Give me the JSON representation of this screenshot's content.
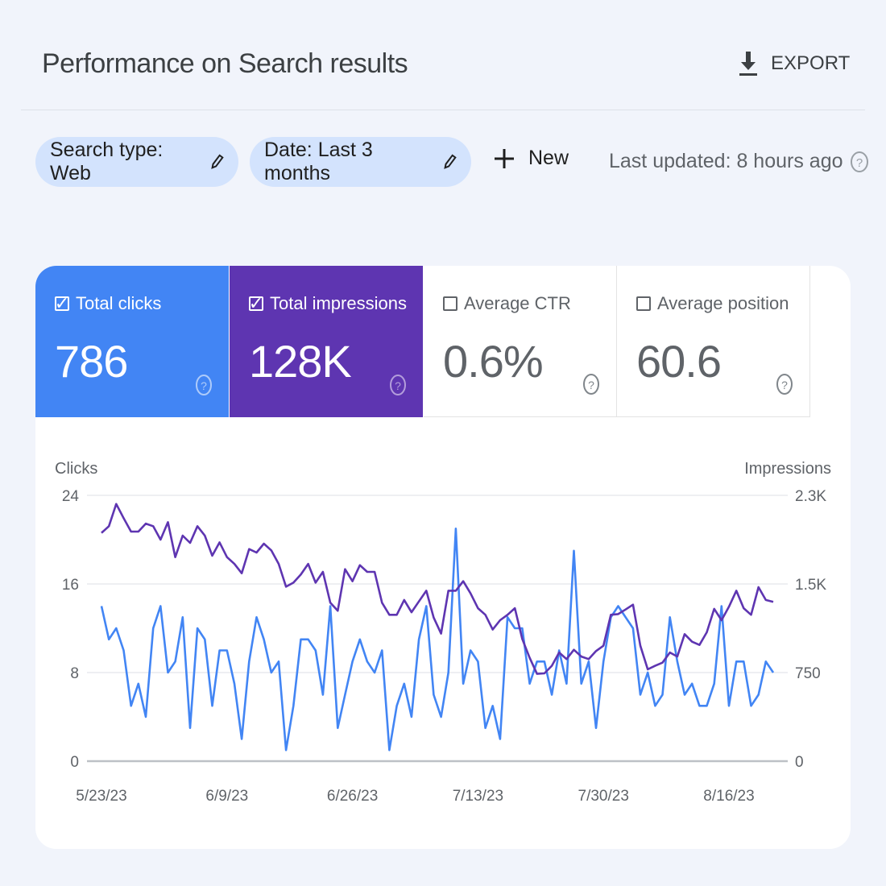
{
  "header": {
    "title": "Performance on Search results",
    "export_label": "EXPORT"
  },
  "filters": {
    "search_type": "Search type: Web",
    "date": "Date: Last 3 months",
    "new_label": "New",
    "last_updated": "Last updated: 8 hours ago"
  },
  "metrics": [
    {
      "label": "Total clicks",
      "value": "786",
      "checked": true,
      "color": "#4285f4"
    },
    {
      "label": "Total impressions",
      "value": "128K",
      "checked": true,
      "color": "#5e35b1"
    },
    {
      "label": "Average CTR",
      "value": "0.6%",
      "checked": false,
      "color": "#ffffff"
    },
    {
      "label": "Average position",
      "value": "60.6",
      "checked": false,
      "color": "#ffffff"
    }
  ],
  "chart_data": {
    "type": "line",
    "left_axis_label": "Clicks",
    "right_axis_label": "Impressions",
    "left_ylim": [
      0,
      24
    ],
    "right_ylim": [
      0,
      2250
    ],
    "left_ticks": [
      "0",
      "8",
      "16",
      "24"
    ],
    "right_ticks": [
      "0",
      "750",
      "1.5K",
      "2.3K"
    ],
    "x_tick_labels": [
      "5/23/23",
      "6/9/23",
      "6/26/23",
      "7/13/23",
      "7/30/23",
      "8/16/23"
    ],
    "grid": true,
    "dates": [
      "5/23",
      "5/24",
      "5/25",
      "5/26",
      "5/27",
      "5/28",
      "5/29",
      "5/30",
      "5/31",
      "6/1",
      "6/2",
      "6/3",
      "6/4",
      "6/5",
      "6/6",
      "6/7",
      "6/8",
      "6/9",
      "6/10",
      "6/11",
      "6/12",
      "6/13",
      "6/14",
      "6/15",
      "6/16",
      "6/17",
      "6/18",
      "6/19",
      "6/20",
      "6/21",
      "6/22",
      "6/23",
      "6/24",
      "6/25",
      "6/26",
      "6/27",
      "6/28",
      "6/29",
      "6/30",
      "7/1",
      "7/2",
      "7/3",
      "7/4",
      "7/5",
      "7/6",
      "7/7",
      "7/8",
      "7/9",
      "7/10",
      "7/11",
      "7/12",
      "7/13",
      "7/14",
      "7/15",
      "7/16",
      "7/17",
      "7/18",
      "7/19",
      "7/20",
      "7/21",
      "7/22",
      "7/23",
      "7/24",
      "7/25",
      "7/26",
      "7/27",
      "7/28",
      "7/29",
      "7/30",
      "7/31",
      "8/1",
      "8/2",
      "8/3",
      "8/4",
      "8/5",
      "8/6",
      "8/7",
      "8/8",
      "8/9",
      "8/10",
      "8/11",
      "8/12",
      "8/13",
      "8/14",
      "8/15",
      "8/16",
      "8/17",
      "8/18",
      "8/19",
      "8/20",
      "8/21",
      "8/22"
    ],
    "series": [
      {
        "name": "Clicks",
        "axis": "left",
        "color": "#4285f4",
        "values": [
          14,
          11,
          12,
          10,
          5,
          7,
          4,
          12,
          14,
          8,
          9,
          13,
          3,
          12,
          11,
          5,
          10,
          10,
          7,
          2,
          9,
          13,
          11,
          8,
          9,
          1,
          5,
          11,
          11,
          10,
          6,
          14,
          3,
          6,
          9,
          11,
          9,
          8,
          10,
          1,
          5,
          7,
          4,
          11,
          14,
          6,
          4,
          8,
          21,
          7,
          10,
          9,
          3,
          5,
          2,
          13,
          12,
          12,
          7,
          9,
          9,
          6,
          10,
          7,
          19,
          7,
          9,
          3,
          9,
          13,
          14,
          13,
          12,
          6,
          8,
          5,
          6,
          13,
          9,
          6,
          7,
          5,
          5,
          7,
          14,
          5,
          9,
          9,
          5,
          6,
          9,
          8
        ]
      },
      {
        "name": "Impressions",
        "axis": "right",
        "color": "#5e35b1",
        "values": [
          1932,
          1989,
          2177,
          2057,
          1943,
          1943,
          2011,
          1989,
          1875,
          2023,
          1727,
          1909,
          1848,
          1989,
          1909,
          1739,
          1852,
          1727,
          1670,
          1591,
          1795,
          1766,
          1841,
          1784,
          1670,
          1477,
          1511,
          1580,
          1670,
          1511,
          1602,
          1341,
          1273,
          1625,
          1523,
          1659,
          1602,
          1602,
          1341,
          1239,
          1239,
          1364,
          1261,
          1352,
          1443,
          1216,
          1080,
          1443,
          1443,
          1523,
          1420,
          1295,
          1239,
          1114,
          1193,
          1239,
          1295,
          1034,
          875,
          739,
          743,
          807,
          920,
          864,
          943,
          886,
          864,
          932,
          977,
          1239,
          1245,
          1284,
          1325,
          977,
          777,
          807,
          834,
          920,
          886,
          1075,
          1011,
          984,
          1091,
          1289,
          1193,
          1307,
          1443,
          1295,
          1239,
          1473,
          1364,
          1348
        ]
      }
    ]
  },
  "icons": {
    "export": "download-icon",
    "edit": "pencil-icon",
    "new": "plus-icon",
    "help": "help-circle-icon",
    "checkbox": "checkbox-icon"
  }
}
